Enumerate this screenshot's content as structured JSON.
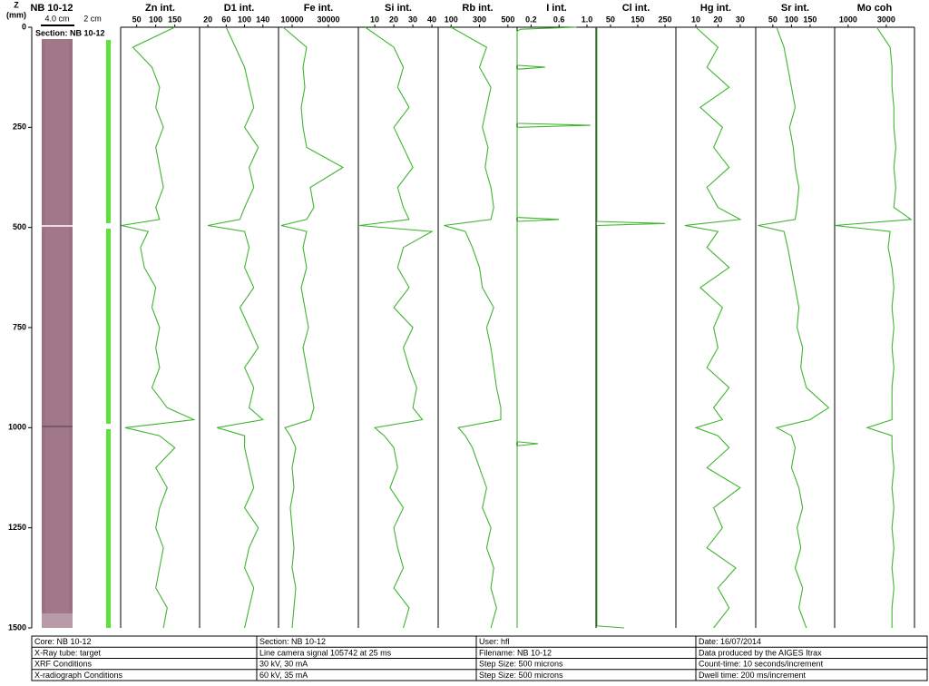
{
  "depth_axis": {
    "ylabel": [
      "Z",
      "(mm)"
    ],
    "ylim": [
      0,
      1500
    ],
    "yticks": [
      0,
      250,
      500,
      750,
      1000,
      1250,
      1500
    ]
  },
  "core": {
    "title": "NB 10-12",
    "scale_left": "4.0 cm",
    "scale_right": "2 cm",
    "section": "Section: NB 10-12"
  },
  "chart_data": [
    {
      "type": "line",
      "title": "Zn int.",
      "color": "#3fb52f",
      "xlim": [
        8,
        215
      ],
      "xticks": [
        50,
        100,
        150
      ],
      "depth": [
        0,
        50,
        100,
        150,
        200,
        250,
        300,
        350,
        400,
        450,
        480,
        495,
        510,
        550,
        600,
        650,
        700,
        750,
        800,
        850,
        900,
        950,
        980,
        1000,
        1020,
        1050,
        1100,
        1150,
        1200,
        1250,
        1300,
        1350,
        1400,
        1450,
        1500
      ],
      "values": [
        150,
        40,
        90,
        110,
        100,
        120,
        100,
        110,
        120,
        100,
        110,
        10,
        80,
        60,
        70,
        100,
        90,
        110,
        100,
        110,
        90,
        130,
        200,
        20,
        110,
        150,
        100,
        130,
        110,
        100,
        120,
        110,
        100,
        130,
        120
      ]
    },
    {
      "type": "line",
      "title": "D1 int.",
      "color": "#3fb52f",
      "xlim": [
        2,
        174
      ],
      "xticks": [
        20,
        60,
        100,
        140
      ],
      "depth": [
        0,
        50,
        100,
        150,
        200,
        250,
        300,
        350,
        400,
        450,
        480,
        495,
        510,
        550,
        600,
        650,
        700,
        750,
        800,
        850,
        900,
        950,
        980,
        1000,
        1020,
        1050,
        1100,
        1150,
        1200,
        1250,
        1300,
        1350,
        1400,
        1450,
        1500
      ],
      "values": [
        60,
        80,
        100,
        110,
        120,
        100,
        130,
        110,
        120,
        100,
        90,
        20,
        100,
        110,
        100,
        120,
        90,
        110,
        130,
        100,
        120,
        110,
        140,
        40,
        100,
        100,
        110,
        120,
        100,
        130,
        110,
        100,
        120,
        110,
        100
      ]
    },
    {
      "type": "line",
      "title": "Fe int.",
      "color": "#3fb52f",
      "xlim": [
        2500,
        46500
      ],
      "xticks": [
        10000,
        30000
      ],
      "depth": [
        0,
        50,
        100,
        150,
        200,
        250,
        300,
        350,
        400,
        450,
        480,
        495,
        510,
        550,
        600,
        650,
        700,
        750,
        800,
        850,
        900,
        950,
        980,
        1000,
        1020,
        1050,
        1100,
        1150,
        1200,
        1250,
        1300,
        1350,
        1400,
        1450,
        1500
      ],
      "values": [
        5000,
        18000,
        16000,
        17000,
        15000,
        16000,
        18000,
        38000,
        20000,
        22000,
        18000,
        4000,
        18000,
        16000,
        18000,
        15000,
        17000,
        19000,
        16000,
        18000,
        20000,
        22000,
        20000,
        6000,
        9000,
        12000,
        10000,
        11000,
        9000,
        10000,
        11000,
        10000,
        12000,
        11000,
        10000
      ]
    },
    {
      "type": "line",
      "title": "Si int.",
      "color": "#3fb52f",
      "xlim": [
        1.4,
        43.3
      ],
      "xticks": [
        10,
        20,
        30,
        40
      ],
      "depth": [
        0,
        50,
        100,
        150,
        200,
        250,
        300,
        350,
        400,
        450,
        480,
        495,
        510,
        550,
        600,
        650,
        700,
        750,
        800,
        850,
        900,
        950,
        980,
        1000,
        1020,
        1050,
        1100,
        1150,
        1200,
        1250,
        1300,
        1350,
        1400,
        1450,
        1500
      ],
      "values": [
        5,
        20,
        25,
        22,
        28,
        20,
        25,
        30,
        22,
        25,
        28,
        2,
        40,
        25,
        22,
        28,
        20,
        30,
        25,
        28,
        32,
        30,
        35,
        10,
        15,
        20,
        22,
        18,
        25,
        20,
        22,
        25,
        20,
        28,
        25
      ]
    },
    {
      "type": "line",
      "title": "Rb int.",
      "color": "#3fb52f",
      "xlim": [
        9,
        565
      ],
      "xticks": [
        100,
        300,
        500
      ],
      "depth": [
        0,
        50,
        100,
        150,
        200,
        250,
        300,
        350,
        400,
        450,
        480,
        495,
        510,
        550,
        600,
        650,
        700,
        750,
        800,
        850,
        900,
        950,
        980,
        1000,
        1020,
        1050,
        1100,
        1150,
        1200,
        1250,
        1300,
        1350,
        1400,
        1450,
        1500
      ],
      "values": [
        100,
        350,
        300,
        380,
        350,
        320,
        360,
        340,
        380,
        400,
        380,
        50,
        200,
        250,
        300,
        320,
        400,
        350,
        380,
        400,
        420,
        450,
        450,
        150,
        200,
        250,
        300,
        350,
        320,
        380,
        350,
        400,
        380,
        420,
        380
      ]
    },
    {
      "type": "line",
      "title": "I int.",
      "color": "#3fb52f",
      "xlim": [
        0,
        1.13
      ],
      "xticks": [
        0.2,
        0.6,
        {
          "value": 1,
          "label": "1.0"
        }
      ],
      "depth": [
        0,
        5,
        10,
        95,
        100,
        105,
        240,
        245,
        250,
        475,
        480,
        485,
        1035,
        1040,
        1045,
        1500
      ],
      "values": [
        0.85,
        0.05,
        0,
        0,
        0.4,
        0,
        0,
        1.05,
        0,
        0,
        0.6,
        0,
        0,
        0.3,
        0,
        0
      ]
    },
    {
      "type": "line",
      "title": "Cl int.",
      "color": "#3fb52f",
      "xlim": [
        -3,
        290
      ],
      "xticks": [
        50,
        150,
        250
      ],
      "depth": [
        0,
        485,
        490,
        495,
        1495,
        1500
      ],
      "values": [
        0,
        0,
        250,
        0,
        0,
        100
      ]
    },
    {
      "type": "line",
      "title": "Hg int.",
      "color": "#3fb52f",
      "xlim": [
        1,
        37
      ],
      "xticks": [
        10,
        20,
        30
      ],
      "depth": [
        0,
        50,
        100,
        150,
        200,
        250,
        300,
        350,
        400,
        450,
        480,
        495,
        510,
        550,
        600,
        650,
        700,
        750,
        800,
        850,
        900,
        950,
        980,
        1000,
        1020,
        1050,
        1100,
        1150,
        1200,
        1250,
        1300,
        1350,
        1400,
        1450,
        1500
      ],
      "values": [
        10,
        20,
        15,
        25,
        12,
        22,
        18,
        25,
        15,
        20,
        30,
        5,
        20,
        15,
        25,
        12,
        22,
        18,
        20,
        15,
        25,
        18,
        22,
        10,
        20,
        25,
        15,
        30,
        18,
        22,
        15,
        28,
        20,
        25,
        18
      ]
    },
    {
      "type": "line",
      "title": "Sr int.",
      "color": "#3fb52f",
      "xlim": [
        4,
        216
      ],
      "xticks": [
        50,
        100,
        150
      ],
      "depth": [
        0,
        50,
        100,
        150,
        200,
        250,
        300,
        350,
        400,
        450,
        480,
        495,
        510,
        550,
        600,
        650,
        700,
        750,
        800,
        850,
        900,
        950,
        980,
        1000,
        1020,
        1050,
        1100,
        1150,
        1200,
        1250,
        1300,
        1350,
        1400,
        1450,
        1500
      ],
      "values": [
        60,
        80,
        90,
        100,
        110,
        95,
        105,
        110,
        120,
        115,
        110,
        10,
        80,
        90,
        100,
        110,
        120,
        115,
        130,
        125,
        140,
        200,
        150,
        60,
        100,
        110,
        100,
        120,
        130,
        115,
        125,
        110,
        130,
        120,
        140
      ]
    },
    {
      "type": "line",
      "title": "Mo coh",
      "color": "#3fb52f",
      "xlim": [
        290,
        4480
      ],
      "xticks": [
        1000,
        3000
      ],
      "depth": [
        0,
        50,
        100,
        150,
        200,
        250,
        300,
        350,
        400,
        450,
        480,
        495,
        510,
        550,
        600,
        650,
        700,
        750,
        800,
        850,
        900,
        950,
        980,
        1000,
        1020,
        1050,
        1100,
        1150,
        1200,
        1250,
        1300,
        1350,
        1400,
        1450,
        1500
      ],
      "values": [
        2500,
        3200,
        3300,
        3300,
        3400,
        3400,
        3500,
        3400,
        3500,
        3400,
        4300,
        300,
        3200,
        3100,
        3300,
        3400,
        3300,
        3400,
        3300,
        3400,
        3300,
        3300,
        3300,
        2000,
        3300,
        3300,
        3400,
        3300,
        3400,
        3300,
        3400,
        3300,
        3400,
        3300,
        3300
      ]
    }
  ],
  "info_table": {
    "rows": [
      [
        "Core: NB 10-12",
        "Section: NB 10-12",
        "User: hfl",
        "Date: 16/07/2014"
      ],
      [
        "X-Ray tube:  target",
        "Line camera signal 105742 at 25 ms",
        "Filename: NB 10-12",
        "Data produced by the AIGES Itrax"
      ],
      [
        "XRF Conditions",
        "30 kV, 30 mA",
        "Step Size: 500 microns",
        "Count-time: 10 seconds/increment"
      ],
      [
        "X-radiograph Conditions",
        "60 kV, 35 mA",
        "Step Size: 500 microns",
        "Dwell time: 200 ms/increment"
      ]
    ]
  }
}
